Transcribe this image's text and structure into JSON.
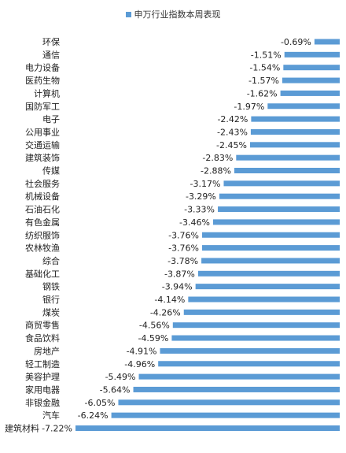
{
  "chart_data": {
    "type": "bar",
    "orientation": "horizontal",
    "legend": {
      "position": "top-center"
    },
    "series": [
      {
        "name": "申万行业指数本周表现",
        "color": "#5b9bd5"
      }
    ],
    "categories": [
      "环保",
      "通信",
      "电力设备",
      "医药生物",
      "计算机",
      "国防军工",
      "电子",
      "公用事业",
      "交通运输",
      "建筑装饰",
      "传媒",
      "社会服务",
      "机械设备",
      "石油石化",
      "有色金属",
      "纺织服饰",
      "农林牧渔",
      "综合",
      "基础化工",
      "钢铁",
      "银行",
      "煤炭",
      "商贸零售",
      "食品饮料",
      "房地产",
      "轻工制造",
      "美容护理",
      "家用电器",
      "非银金融",
      "汽车",
      "建筑材料"
    ],
    "values": [
      -0.69,
      -1.51,
      -1.54,
      -1.57,
      -1.62,
      -1.97,
      -2.42,
      -2.43,
      -2.45,
      -2.83,
      -2.88,
      -3.17,
      -3.29,
      -3.33,
      -3.46,
      -3.76,
      -3.76,
      -3.78,
      -3.87,
      -3.94,
      -4.14,
      -4.26,
      -4.56,
      -4.59,
      -4.91,
      -4.96,
      -5.49,
      -5.64,
      -6.05,
      -6.24,
      -7.22
    ],
    "labels": [
      "-0.69%",
      "-1.51%",
      "-1.54%",
      "-1.57%",
      "-1.62%",
      "-1.97%",
      "-2.42%",
      "-2.43%",
      "-2.45%",
      "-2.83%",
      "-2.88%",
      "-3.17%",
      "-3.29%",
      "-3.33%",
      "-3.46%",
      "-3.76%",
      "-3.76%",
      "-3.78%",
      "-3.87%",
      "-3.94%",
      "-4.14%",
      "-4.26%",
      "-4.56%",
      "-4.59%",
      "-4.91%",
      "-4.96%",
      "-5.49%",
      "-5.64%",
      "-6.05%",
      "-6.24%",
      "-7.22%"
    ],
    "xlim": [
      -7.22,
      0
    ],
    "grid": false
  }
}
